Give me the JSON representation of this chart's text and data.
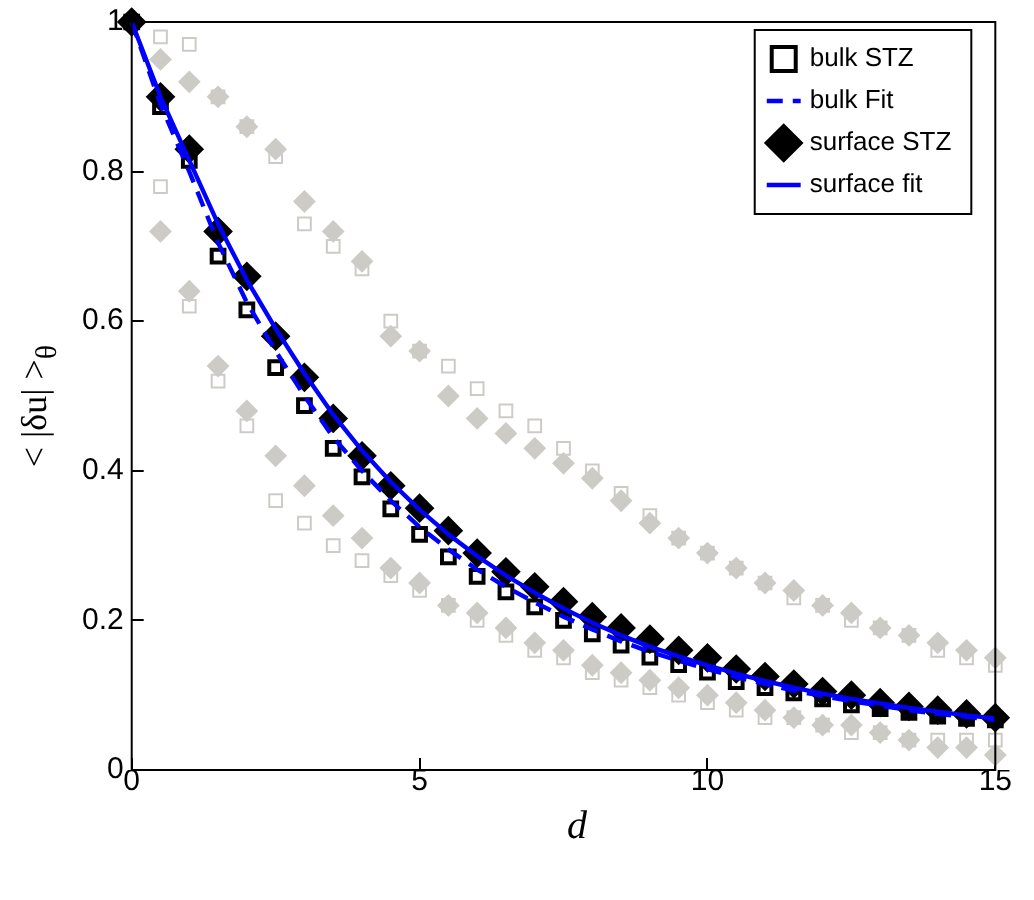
{
  "chart_data": {
    "type": "scatter",
    "xlabel": "d",
    "ylabel": "< |δu| >$_{θ}$",
    "x": [
      0,
      0.5,
      1,
      1.5,
      2,
      2.5,
      3,
      3.5,
      4,
      4.5,
      5,
      5.5,
      6,
      6.5,
      7,
      7.5,
      8,
      8.5,
      9,
      9.5,
      10,
      10.5,
      11,
      11.5,
      12,
      12.5,
      13,
      13.5,
      14,
      14.5,
      15
    ],
    "series": [
      {
        "color": "#cdcbc6",
        "marker": "square",
        "values": [
          null,
          0.78,
          0.62,
          0.52,
          0.46,
          0.36,
          0.33,
          0.3,
          0.28,
          0.26,
          0.24,
          0.22,
          0.2,
          0.18,
          0.16,
          0.15,
          0.13,
          0.12,
          0.11,
          0.1,
          0.09,
          0.08,
          0.07,
          0.07,
          0.06,
          0.05,
          0.05,
          0.04,
          0.04,
          0.04,
          0.04
        ]
      },
      {
        "color": "#cdcbc6",
        "marker": "square",
        "values": [
          null,
          0.98,
          0.97,
          0.9,
          0.86,
          0.82,
          0.73,
          0.7,
          0.67,
          0.6,
          0.56,
          0.54,
          0.51,
          0.48,
          0.46,
          0.43,
          0.4,
          0.37,
          0.34,
          0.31,
          0.29,
          0.27,
          0.25,
          0.23,
          0.22,
          0.2,
          0.19,
          0.18,
          0.16,
          0.15,
          0.14
        ]
      },
      {
        "color": "#cdcbc6",
        "marker": "diamond",
        "values": [
          null,
          0.72,
          0.64,
          0.54,
          0.48,
          0.42,
          0.38,
          0.34,
          0.31,
          0.27,
          0.25,
          0.22,
          0.21,
          0.19,
          0.17,
          0.16,
          0.14,
          0.13,
          0.12,
          0.11,
          0.1,
          0.09,
          0.08,
          0.07,
          0.06,
          0.06,
          0.05,
          0.04,
          0.03,
          0.03,
          0.02
        ]
      },
      {
        "color": "#cdcbc6",
        "marker": "diamond",
        "values": [
          null,
          0.95,
          0.92,
          0.9,
          0.86,
          0.83,
          0.76,
          0.72,
          0.68,
          0.58,
          0.56,
          0.5,
          0.47,
          0.45,
          0.43,
          0.41,
          0.39,
          0.36,
          0.33,
          0.31,
          0.29,
          0.27,
          0.25,
          0.24,
          0.22,
          0.21,
          0.19,
          0.18,
          0.17,
          0.16,
          0.15
        ]
      },
      {
        "name": "bulk STZ",
        "color": "#000000",
        "marker": "square",
        "values": [
          1.0,
          0.887,
          0.815,
          0.687,
          0.615,
          0.538,
          0.487,
          0.43,
          0.392,
          0.349,
          0.315,
          0.285,
          0.259,
          0.238,
          0.218,
          0.2,
          0.182,
          0.167,
          0.151,
          0.141,
          0.131,
          0.118,
          0.11,
          0.103,
          0.095,
          0.087,
          0.082,
          0.077,
          0.072,
          0.069,
          0.067
        ]
      },
      {
        "name": "bulk Fit",
        "type": "line",
        "color": "#0000ff",
        "line_style": "dashed",
        "marker": "none",
        "values": [
          1.0,
          0.89,
          0.8,
          0.705,
          0.625,
          0.56,
          0.5,
          0.445,
          0.4,
          0.36,
          0.325,
          0.295,
          0.268,
          0.245,
          0.224,
          0.205,
          0.188,
          0.172,
          0.158,
          0.146,
          0.135,
          0.124,
          0.115,
          0.106,
          0.099,
          0.092,
          0.086,
          0.08,
          0.075,
          0.071,
          0.067
        ]
      },
      {
        "name": "surface STZ",
        "color": "#000000",
        "marker": "diamond",
        "values": [
          1.0,
          0.9,
          0.83,
          0.72,
          0.66,
          0.58,
          0.525,
          0.47,
          0.42,
          0.38,
          0.35,
          0.32,
          0.29,
          0.265,
          0.245,
          0.225,
          0.205,
          0.19,
          0.175,
          0.16,
          0.15,
          0.135,
          0.125,
          0.115,
          0.105,
          0.1,
          0.09,
          0.085,
          0.08,
          0.075,
          0.07
        ]
      },
      {
        "name": "surface fit",
        "type": "line",
        "color": "#0000ff",
        "line_style": "solid",
        "marker": "none",
        "values": [
          1.0,
          0.9,
          0.815,
          0.73,
          0.655,
          0.59,
          0.53,
          0.475,
          0.427,
          0.385,
          0.348,
          0.315,
          0.286,
          0.26,
          0.237,
          0.216,
          0.197,
          0.18,
          0.165,
          0.152,
          0.14,
          0.129,
          0.119,
          0.11,
          0.102,
          0.095,
          0.089,
          0.083,
          0.078,
          0.073,
          0.069
        ]
      }
    ],
    "xlim": [
      0,
      15
    ],
    "xticks": [
      0,
      5,
      10,
      15
    ],
    "ylim": [
      0,
      1
    ],
    "yticks": [
      0,
      0.2,
      0.4,
      0.6,
      0.8,
      1
    ],
    "grid": false,
    "legend": "top right"
  }
}
